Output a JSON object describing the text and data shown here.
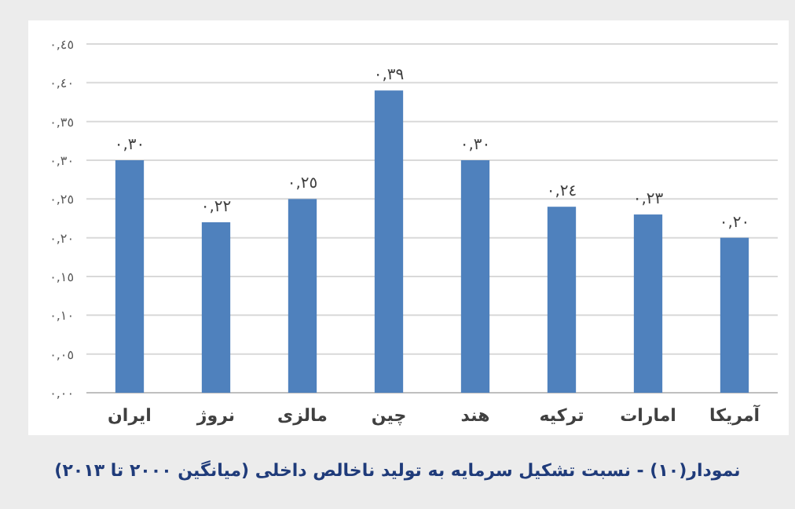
{
  "chart_data": {
    "type": "bar",
    "title": "نمودار(١٠) - نسبت تشکیل سرمایه به تولید ناخالص داخلی (میانگین ٢٠٠٠ تا ٢٠١٣)",
    "categories": [
      "ایران",
      "نروژ",
      "مالزی",
      "چین",
      "هند",
      "ترکیه",
      "امارات",
      "آمریکا"
    ],
    "values": [
      0.3,
      0.22,
      0.25,
      0.39,
      0.3,
      0.24,
      0.23,
      0.2
    ],
    "value_labels": [
      "٠,٣٠",
      "٠,٢٢",
      "٠,٢٥",
      "٠,٣٩",
      "٠,٣٠",
      "٠,٢٤",
      "٠,٢٣",
      "٠,٢٠"
    ],
    "color": "#4f81bd",
    "ylim": [
      0,
      0.45
    ],
    "yticks": [
      {
        "value": 0,
        "label": "٠,٠٠"
      },
      {
        "value": 0.05,
        "label": "٠,٠٥"
      },
      {
        "value": 0.1,
        "label": "٠,١٠"
      },
      {
        "value": 0.15,
        "label": "٠,١٥"
      },
      {
        "value": 0.2,
        "label": "٠,٢٠"
      },
      {
        "value": 0.25,
        "label": "٠,٢٥"
      },
      {
        "value": 0.3,
        "label": "٠,٣٠"
      },
      {
        "value": 0.35,
        "label": "٠,٣٥"
      },
      {
        "value": 0.4,
        "label": "٠,٤٠"
      },
      {
        "value": 0.45,
        "label": "٠,٤٥"
      }
    ],
    "grid": "y"
  }
}
